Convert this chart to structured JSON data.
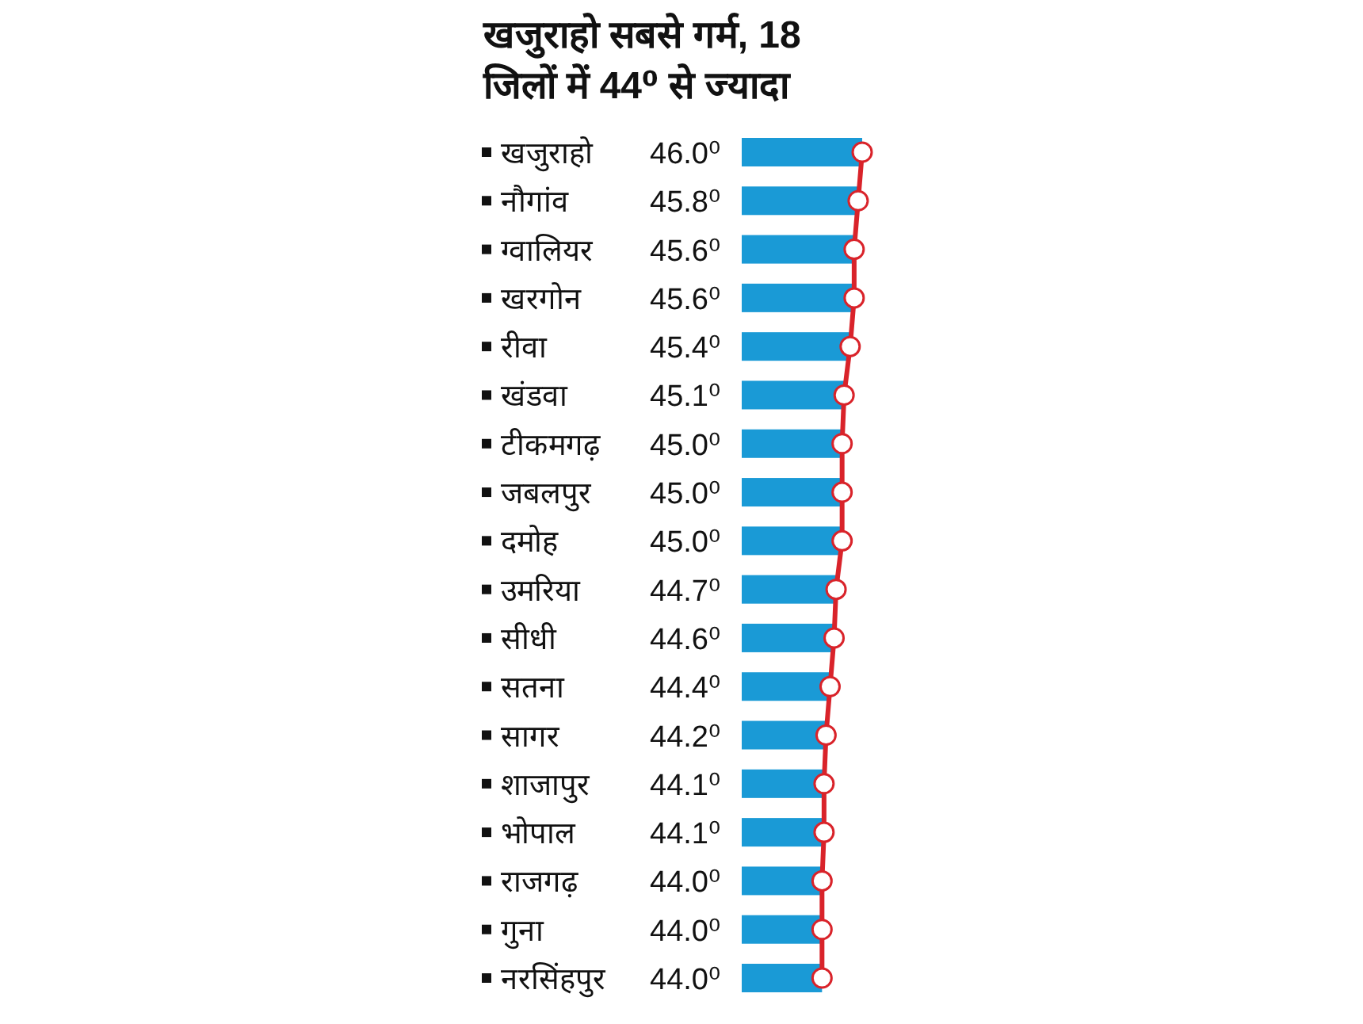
{
  "chart_data": {
    "type": "bar",
    "orientation": "horizontal",
    "title": "खजुराहो सबसे गर्म, 18 जिलों में 44⁰ से ज्यादा",
    "categories": [
      "खजुराहो",
      "नौगांव",
      "ग्वालियर",
      "खरगोन",
      "रीवा",
      "खंडवा",
      "टीकमगढ़",
      "जबलपुर",
      "दमोह",
      "उमरिया",
      "सीधी",
      "सतना",
      "सागर",
      "शाजापुर",
      "भोपाल",
      "राजगढ़",
      "गुना",
      "नरसिंहपुर"
    ],
    "xlim": [
      40,
      46
    ],
    "tick_labels": false,
    "marker": "circle",
    "series": [
      {
        "color": "#1a9ad6",
        "values": [
          46.0,
          45.8,
          45.6,
          45.6,
          45.4,
          45.1,
          45.0,
          45.0,
          45.0,
          44.7,
          44.6,
          44.4,
          44.2,
          44.1,
          44.1,
          44.0,
          44.0,
          44.0
        ],
        "value_labels": [
          "46.0⁰",
          "45.8⁰",
          "45.6⁰",
          "45.6⁰",
          "45.4⁰",
          "45.1⁰",
          "45.0⁰",
          "45.0⁰",
          "45.0⁰",
          "44.7⁰",
          "44.6⁰",
          "44.4⁰",
          "44.2⁰",
          "44.1⁰",
          "44.1⁰",
          "44.0⁰",
          "44.0⁰",
          "44.0⁰"
        ]
      },
      {
        "type": "line",
        "color": "#d9232a",
        "values": [
          46.0,
          45.8,
          45.6,
          45.6,
          45.4,
          45.1,
          45.0,
          45.0,
          45.0,
          44.7,
          44.6,
          44.4,
          44.2,
          44.1,
          44.1,
          44.0,
          44.0,
          44.0
        ]
      }
    ]
  }
}
